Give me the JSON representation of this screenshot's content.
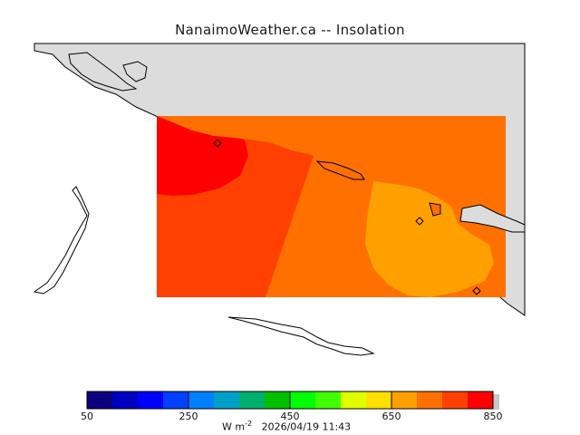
{
  "title": "NanaimoWeather.ca -- Insolation",
  "colorbar": {
    "colors": [
      "#0d007f",
      "#0000bf",
      "#0000ff",
      "#0040ff",
      "#0080ff",
      "#00a0c8",
      "#00b070",
      "#00c000",
      "#00ff00",
      "#40ff00",
      "#e0ff00",
      "#ffe000",
      "#ffa000",
      "#ff7000",
      "#ff4000",
      "#ff0000"
    ],
    "labels": [
      "50",
      "250",
      "450",
      "650",
      "850"
    ]
  },
  "units_prefix": "W m",
  "units_exponent": "-2",
  "timestamp": "2026/04/19 11:43",
  "field_colors": {
    "c850": "#ff0000",
    "c800": "#ff4000",
    "c750": "#ff7000",
    "c700": "#ffa000",
    "land": "#dcdcdc"
  }
}
